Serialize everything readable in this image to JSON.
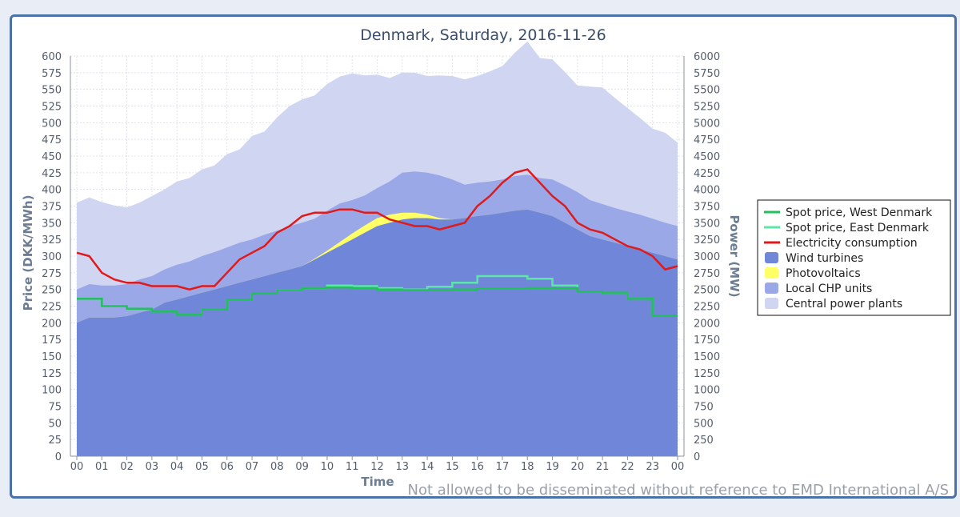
{
  "chart_data": {
    "type": "area",
    "title": "Denmark, Saturday, 2016-11-26",
    "xlabel": "Time",
    "ylabel_left": "Price (DKK/MWh)",
    "ylabel_right": "Power (MW)",
    "watermark": "Not allowed to be disseminated without reference to EMD International A/S",
    "x_ticks": [
      "00",
      "01",
      "02",
      "03",
      "04",
      "05",
      "06",
      "07",
      "08",
      "09",
      "10",
      "11",
      "12",
      "13",
      "14",
      "15",
      "16",
      "17",
      "18",
      "19",
      "20",
      "21",
      "22",
      "23",
      "00"
    ],
    "ylim_left": [
      0,
      600
    ],
    "ylim_right": [
      0,
      6000
    ],
    "y_ticks_left": [
      0,
      25,
      50,
      75,
      100,
      125,
      150,
      175,
      200,
      225,
      250,
      275,
      300,
      325,
      350,
      375,
      400,
      425,
      450,
      475,
      500,
      525,
      550,
      575,
      600
    ],
    "y_ticks_right": [
      0,
      250,
      500,
      750,
      1000,
      1250,
      1500,
      1750,
      2000,
      2250,
      2500,
      2750,
      3000,
      3250,
      3500,
      3750,
      4000,
      4250,
      4500,
      4750,
      5000,
      5250,
      5500,
      5750,
      6000
    ],
    "x_hours": [
      0,
      0.5,
      1,
      1.5,
      2,
      2.5,
      3,
      3.5,
      4,
      4.5,
      5,
      5.5,
      6,
      6.5,
      7,
      7.5,
      8,
      8.5,
      9,
      9.5,
      10,
      10.5,
      11,
      11.5,
      12,
      12.5,
      13,
      13.5,
      14,
      14.5,
      15,
      15.5,
      16,
      16.5,
      17,
      17.5,
      18,
      18.5,
      19,
      19.5,
      20,
      20.5,
      21,
      21.5,
      22,
      22.5,
      23,
      23.5,
      24
    ],
    "series": [
      {
        "name": "Wind turbines",
        "kind": "area",
        "axis": "power",
        "color": "#7086d8",
        "values": [
          2000,
          2080,
          2080,
          2080,
          2100,
          2150,
          2200,
          2300,
          2350,
          2400,
          2450,
          2500,
          2550,
          2600,
          2650,
          2700,
          2750,
          2800,
          2850,
          2950,
          3050,
          3150,
          3250,
          3350,
          3450,
          3500,
          3550,
          3570,
          3570,
          3550,
          3550,
          3570,
          3600,
          3620,
          3650,
          3680,
          3700,
          3650,
          3600,
          3500,
          3400,
          3300,
          3250,
          3200,
          3150,
          3100,
          3050,
          3000,
          2950
        ]
      },
      {
        "name": "Photovoltaics",
        "kind": "area",
        "axis": "power",
        "color": "#ffff66",
        "values": [
          0,
          0,
          0,
          0,
          0,
          0,
          0,
          0,
          0,
          0,
          0,
          0,
          0,
          0,
          0,
          0,
          0,
          0,
          0,
          10,
          30,
          60,
          90,
          110,
          120,
          120,
          100,
          80,
          50,
          20,
          0,
          0,
          0,
          0,
          0,
          0,
          0,
          0,
          0,
          0,
          0,
          0,
          0,
          0,
          0,
          0,
          0,
          0,
          0
        ]
      },
      {
        "name": "Local CHP units",
        "kind": "area",
        "axis": "power",
        "color": "#9aa8e8",
        "values": [
          500,
          500,
          480,
          480,
          480,
          500,
          500,
          500,
          520,
          520,
          550,
          560,
          580,
          600,
          600,
          620,
          630,
          650,
          650,
          600,
          600,
          580,
          500,
          450,
          450,
          500,
          600,
          620,
          630,
          640,
          600,
          500,
          500,
          500,
          500,
          520,
          520,
          520,
          550,
          560,
          560,
          540,
          530,
          520,
          520,
          520,
          510,
          500,
          500
        ]
      },
      {
        "name": "Central power plants",
        "kind": "area",
        "axis": "power",
        "color": "#d0d5f2",
        "values": [
          1300,
          1300,
          1250,
          1200,
          1150,
          1150,
          1200,
          1200,
          1250,
          1250,
          1300,
          1300,
          1400,
          1400,
          1550,
          1550,
          1700,
          1800,
          1850,
          1850,
          1900,
          1900,
          1900,
          1800,
          1700,
          1550,
          1500,
          1480,
          1450,
          1500,
          1550,
          1580,
          1600,
          1650,
          1700,
          1850,
          2000,
          1800,
          1800,
          1700,
          1600,
          1700,
          1750,
          1650,
          1550,
          1450,
          1350,
          1350,
          1250
        ]
      },
      {
        "name": "Electricity consumption",
        "kind": "line",
        "axis": "power",
        "color": "#e01a1a",
        "values": [
          3050,
          3000,
          2750,
          2650,
          2600,
          2600,
          2550,
          2550,
          2550,
          2500,
          2550,
          2550,
          2750,
          2950,
          3050,
          3150,
          3350,
          3450,
          3600,
          3650,
          3650,
          3700,
          3700,
          3650,
          3650,
          3550,
          3500,
          3450,
          3450,
          3400,
          3450,
          3500,
          3750,
          3900,
          4100,
          4250,
          4300,
          4100,
          3900,
          3750,
          3500,
          3400,
          3350,
          3250,
          3150,
          3100,
          3000,
          2800,
          2850
        ]
      },
      {
        "name": "Spot price, West Denmark",
        "kind": "step",
        "axis": "price",
        "color": "#22c05a",
        "values": [
          236,
          225,
          221,
          217,
          212,
          220,
          235,
          244,
          249,
          252,
          253,
          252,
          250,
          249,
          249,
          250,
          251,
          251,
          252,
          252,
          247,
          245,
          236,
          211
        ]
      },
      {
        "name": "Spot price, East Denmark",
        "kind": "step",
        "axis": "price",
        "color": "#5ce6a8",
        "values": [
          236,
          225,
          221,
          217,
          212,
          220,
          235,
          244,
          249,
          252,
          256,
          255,
          252,
          250,
          254,
          260,
          270,
          270,
          266,
          256,
          247,
          245,
          236,
          211
        ]
      }
    ],
    "legend": [
      "Spot price, West Denmark",
      "Spot price, East Denmark",
      "Electricity consumption",
      "Wind turbines",
      "Photovoltaics",
      "Local CHP units",
      "Central power plants"
    ],
    "legend_position": "right"
  }
}
